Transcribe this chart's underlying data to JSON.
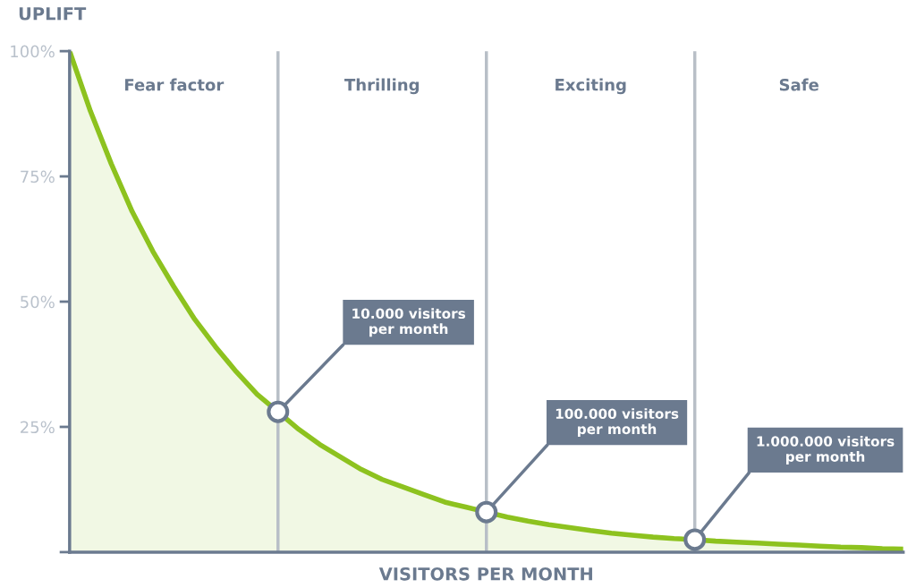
{
  "chart_data": {
    "type": "area",
    "xlabel": "VISITORS PER MONTH",
    "ylabel": "UPLIFT",
    "categories": [
      null,
      null,
      null,
      null,
      null,
      null,
      null,
      null,
      null,
      null,
      null,
      null,
      null,
      null,
      null,
      null,
      null,
      null,
      null,
      null,
      null,
      null,
      null,
      null,
      null,
      null,
      null,
      null,
      null,
      null,
      null,
      null,
      null,
      null,
      null,
      null,
      null,
      null,
      null,
      null,
      null
    ],
    "series": [
      {
        "color": "#8dc21f",
        "values": [
          100,
          88,
          77.5,
          68,
          60,
          53,
          46.5,
          41,
          36,
          31.5,
          28,
          24.5,
          21.5,
          19,
          16.5,
          14.5,
          13,
          11.5,
          10,
          9,
          8,
          7,
          6.2,
          5.5,
          4.9,
          4.3,
          3.8,
          3.4,
          3,
          2.7,
          2.5,
          2.2,
          2,
          1.8,
          1.6,
          1.4,
          1.2,
          1,
          0.9,
          0.7,
          0.6
        ]
      }
    ],
    "ylim": [
      0,
      100
    ],
    "yticks": [
      {
        "value": 0,
        "label": null
      },
      {
        "value": 25,
        "label": "25%"
      },
      {
        "value": 50,
        "label": "50%"
      },
      {
        "value": 75,
        "label": "75%"
      },
      {
        "value": 100,
        "label": "100%"
      }
    ],
    "tick_labels": "y",
    "grid": "x",
    "annotations": [
      "Fear factor",
      "Thrilling",
      "Exciting",
      "Safe",
      "10.000 visitors\nper month",
      "100.000 visitors\nper month",
      "1.000.000 visitors\nper month"
    ]
  }
}
